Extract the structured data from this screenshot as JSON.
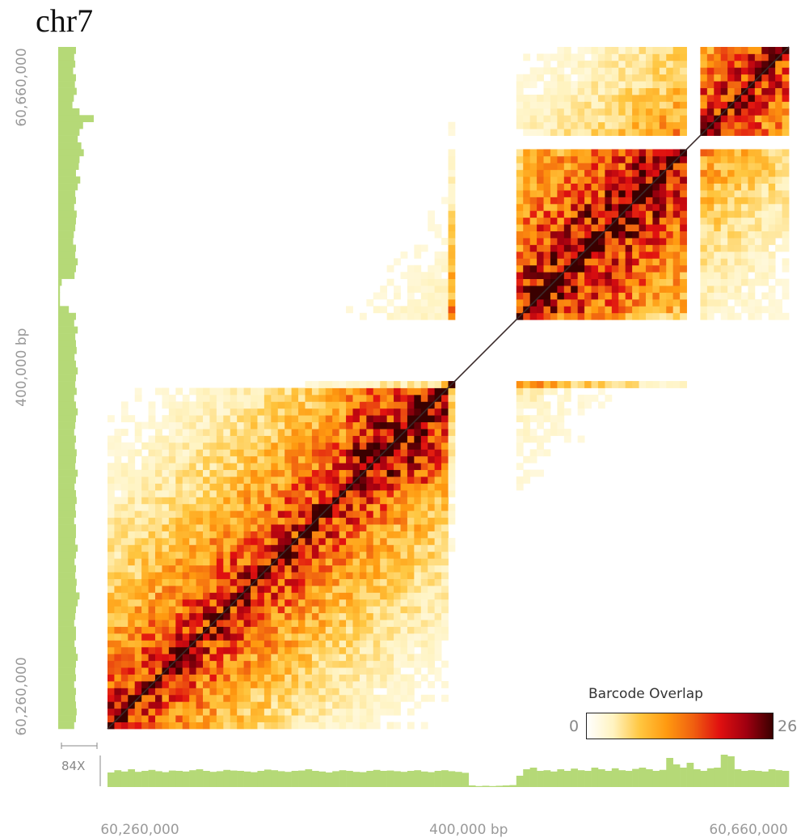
{
  "title": "chr7",
  "chart_data": {
    "type": "heatmap",
    "subtype": "linked-read barcode overlap matrix",
    "chromosome": "chr7",
    "x_axis": {
      "tick_labels": [
        "60,260,000",
        "400,000 bp",
        "60,660,000"
      ],
      "range": [
        60260000,
        60660000
      ]
    },
    "y_axis": {
      "tick_labels": [
        "60,260,000",
        "400,000 bp",
        "60,660,000"
      ],
      "range": [
        60260000,
        60660000
      ]
    },
    "colorbar": {
      "title": "Barcode Overlap",
      "min": 0,
      "max": 26,
      "colors": [
        "#ffffff",
        "#fff3c0",
        "#ffc640",
        "#ff9a10",
        "#f06010",
        "#e01010",
        "#a00010",
        "#3a0000"
      ]
    },
    "coverage_label": "84X",
    "coverage_color": "#b5d977",
    "diagonal": true,
    "blocks_note": "Coverage gaps at ~0.50–0.60 (blank band) and ~0.85–0.87 of the region",
    "coverage_x": [
      0.45,
      0.52,
      0.48,
      0.55,
      0.47,
      0.5,
      0.53,
      0.49,
      0.46,
      0.51,
      0.5,
      0.48,
      0.52,
      0.55,
      0.5,
      0.47,
      0.49,
      0.53,
      0.51,
      0.5,
      0.48,
      0.46,
      0.5,
      0.54,
      0.52,
      0.49,
      0.47,
      0.5,
      0.51,
      0.55,
      0.5,
      0.48,
      0.45,
      0.49,
      0.52,
      0.5,
      0.47,
      0.46,
      0.5,
      0.53,
      0.5,
      0.51,
      0.49,
      0.47,
      0.5,
      0.52,
      0.48,
      0.46,
      0.5,
      0.52,
      0.49,
      0.47,
      0.44,
      0.05,
      0.03,
      0.04,
      0.03,
      0.04,
      0.05,
      0.06,
      0.35,
      0.55,
      0.6,
      0.5,
      0.52,
      0.48,
      0.55,
      0.5,
      0.57,
      0.52,
      0.5,
      0.6,
      0.55,
      0.5,
      0.58,
      0.52,
      0.5,
      0.56,
      0.6,
      0.55,
      0.5,
      0.53,
      0.9,
      0.7,
      0.6,
      0.75,
      0.55,
      0.5,
      0.58,
      0.6,
      1.0,
      0.95,
      0.55,
      0.5,
      0.52,
      0.5,
      0.48,
      0.55,
      0.52,
      0.5
    ],
    "coverage_y": [
      0.5,
      0.45,
      0.48,
      0.42,
      0.5,
      0.47,
      0.52,
      0.44,
      0.4,
      0.6,
      1.0,
      0.7,
      0.6,
      0.55,
      0.65,
      0.72,
      0.6,
      0.58,
      0.5,
      0.62,
      0.55,
      0.48,
      0.5,
      0.45,
      0.52,
      0.5,
      0.48,
      0.44,
      0.42,
      0.5,
      0.48,
      0.55,
      0.5,
      0.46,
      0.1,
      0.05,
      0.05,
      0.05,
      0.3,
      0.5,
      0.45,
      0.55,
      0.48,
      0.5,
      0.52,
      0.46,
      0.5,
      0.55,
      0.5,
      0.48,
      0.52,
      0.45,
      0.5,
      0.55,
      0.5,
      0.48,
      0.45,
      0.5,
      0.47,
      0.52,
      0.5,
      0.48,
      0.55,
      0.5,
      0.46,
      0.5,
      0.52,
      0.48,
      0.5,
      0.45,
      0.5,
      0.5,
      0.48,
      0.55,
      0.5,
      0.46,
      0.5,
      0.48,
      0.52,
      0.5,
      0.6,
      0.55,
      0.5,
      0.48,
      0.45,
      0.5,
      0.5,
      0.46,
      0.5,
      0.55,
      0.5,
      0.48,
      0.5,
      0.45,
      0.5,
      0.48,
      0.5,
      0.52,
      0.5,
      0.45
    ]
  }
}
